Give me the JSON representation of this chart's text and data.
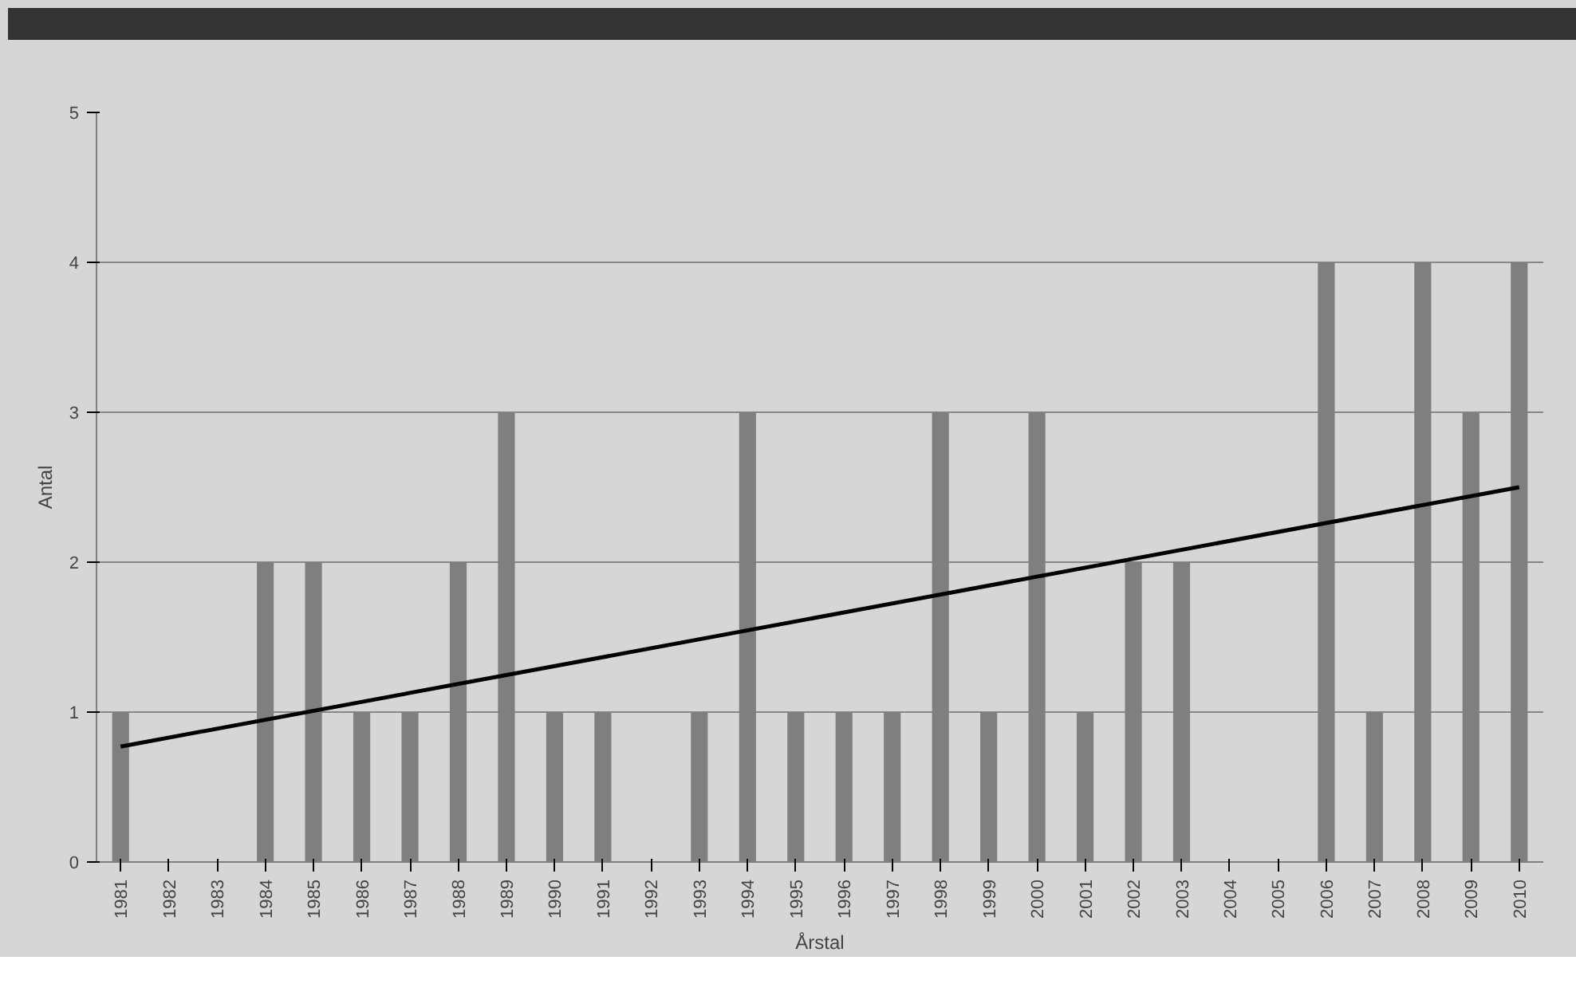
{
  "chart_data": {
    "type": "bar",
    "xlabel": "Årstal",
    "ylabel": "Antal",
    "categories": [
      "1981",
      "1982",
      "1983",
      "1984",
      "1985",
      "1986",
      "1987",
      "1988",
      "1989",
      "1990",
      "1991",
      "1992",
      "1993",
      "1994",
      "1995",
      "1996",
      "1997",
      "1998",
      "1999",
      "2000",
      "2001",
      "2002",
      "2003",
      "2004",
      "2005",
      "2006",
      "2007",
      "2008",
      "2009",
      "2010"
    ],
    "series": [
      {
        "color": "#7f7f7f",
        "values": [
          1,
          0,
          0,
          2,
          2,
          1,
          1,
          2,
          3,
          1,
          1,
          0,
          1,
          3,
          1,
          1,
          1,
          3,
          1,
          3,
          1,
          2,
          2,
          0,
          0,
          4,
          1,
          4,
          3,
          4
        ]
      },
      {
        "type": "line",
        "color": "#000000",
        "values": [
          0.77,
          null,
          null,
          null,
          null,
          null,
          null,
          null,
          null,
          null,
          null,
          null,
          null,
          null,
          null,
          null,
          null,
          null,
          null,
          null,
          null,
          null,
          null,
          null,
          null,
          null,
          null,
          null,
          null,
          2.5
        ]
      }
    ],
    "ylim": [
      0,
      5
    ],
    "yticks": [
      0,
      1,
      2,
      3,
      4,
      5
    ],
    "grid": "y"
  }
}
